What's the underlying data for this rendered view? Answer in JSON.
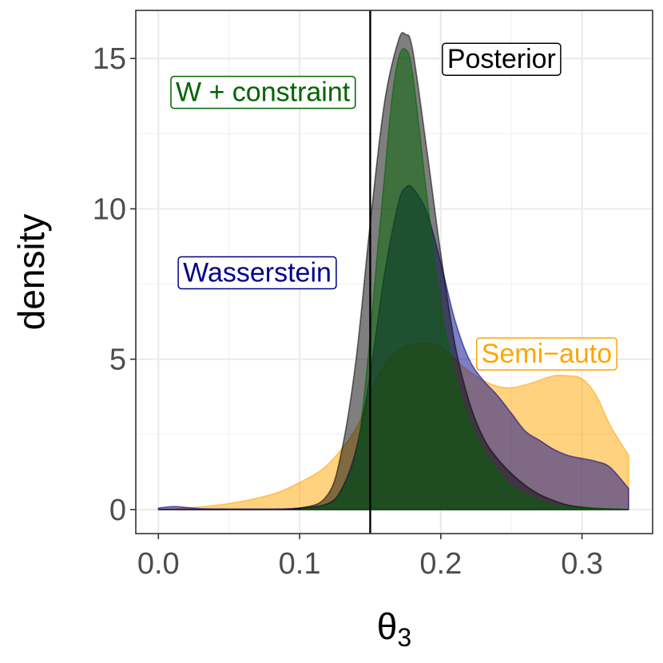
{
  "chart_data": {
    "type": "area",
    "xlabel": "θ",
    "xlabel_subscript": "3",
    "ylabel": "density",
    "xlim": [
      -0.016,
      0.35
    ],
    "ylim": [
      -0.8,
      16.6
    ],
    "x_ticks": [
      0.0,
      0.1,
      0.2,
      0.3
    ],
    "x_tick_labels": [
      "0.0",
      "0.1",
      "0.2",
      "0.3"
    ],
    "y_ticks": [
      0,
      5,
      10,
      15
    ],
    "y_tick_labels": [
      "0",
      "5",
      "10",
      "15"
    ],
    "grid": true,
    "vline": {
      "x": 0.15,
      "color": "#000000"
    },
    "series": [
      {
        "name": "Semi−auto",
        "color": "#ffa500",
        "fill_opacity": 0.5,
        "x": [
          0.0,
          0.02,
          0.05,
          0.08,
          0.1,
          0.12,
          0.14,
          0.15,
          0.16,
          0.17,
          0.18,
          0.19,
          0.2,
          0.21,
          0.22,
          0.23,
          0.24,
          0.25,
          0.26,
          0.27,
          0.28,
          0.29,
          0.3,
          0.31,
          0.32,
          0.333
        ],
        "y": [
          0.0,
          0.05,
          0.2,
          0.5,
          0.9,
          1.5,
          2.7,
          3.9,
          4.8,
          5.3,
          5.5,
          5.55,
          5.4,
          5.0,
          4.6,
          4.3,
          4.1,
          4.05,
          4.15,
          4.3,
          4.45,
          4.45,
          4.35,
          3.8,
          2.8,
          1.8
        ]
      },
      {
        "name": "Wasserstein",
        "color": "#00008b",
        "fill_opacity": 0.5,
        "x": [
          0.0,
          0.01,
          0.02,
          0.03,
          0.05,
          0.08,
          0.1,
          0.12,
          0.13,
          0.14,
          0.15,
          0.16,
          0.17,
          0.175,
          0.18,
          0.19,
          0.2,
          0.21,
          0.22,
          0.23,
          0.24,
          0.25,
          0.26,
          0.27,
          0.28,
          0.29,
          0.3,
          0.31,
          0.32,
          0.333
        ],
        "y": [
          0.05,
          0.1,
          0.07,
          0.03,
          0.02,
          0.02,
          0.05,
          0.2,
          0.7,
          2.0,
          4.5,
          7.8,
          10.2,
          10.7,
          10.7,
          9.9,
          8.2,
          6.3,
          5.0,
          4.3,
          3.8,
          3.2,
          2.6,
          2.3,
          2.0,
          1.8,
          1.7,
          1.6,
          1.4,
          0.7
        ]
      },
      {
        "name": "Posterior",
        "color": "#000000",
        "fill_opacity": 0.5,
        "x": [
          0.0,
          0.05,
          0.1,
          0.12,
          0.13,
          0.14,
          0.15,
          0.16,
          0.17,
          0.175,
          0.18,
          0.19,
          0.2,
          0.21,
          0.22,
          0.23,
          0.24,
          0.25,
          0.26,
          0.27,
          0.28,
          0.29,
          0.3,
          0.31,
          0.32,
          0.333
        ],
        "y": [
          0.0,
          0.0,
          0.05,
          0.5,
          2.0,
          5.0,
          9.5,
          13.5,
          15.6,
          15.8,
          15.3,
          12.0,
          8.5,
          5.5,
          3.6,
          2.4,
          1.7,
          1.2,
          0.8,
          0.5,
          0.3,
          0.15,
          0.08,
          0.04,
          0.02,
          0.0
        ]
      },
      {
        "name": "W + constraint",
        "color": "#006400",
        "fill_opacity": 0.5,
        "x": [
          0.1,
          0.12,
          0.13,
          0.14,
          0.145,
          0.15,
          0.155,
          0.16,
          0.165,
          0.17,
          0.175,
          0.18,
          0.19,
          0.2,
          0.21,
          0.22,
          0.23,
          0.24,
          0.25,
          0.26,
          0.27,
          0.28,
          0.3,
          0.333
        ],
        "y": [
          0.0,
          0.15,
          0.6,
          1.8,
          3.5,
          5.8,
          8.5,
          11.0,
          13.5,
          15.0,
          15.3,
          14.5,
          10.5,
          6.8,
          4.5,
          3.0,
          2.0,
          1.3,
          0.8,
          0.5,
          0.3,
          0.15,
          0.05,
          0.0
        ]
      }
    ],
    "annotations": [
      {
        "text": "Posterior",
        "x": 0.243,
        "y": 15.0,
        "color": "#000000"
      },
      {
        "text": "W + constraint",
        "x": 0.074,
        "y": 13.9,
        "color": "#006400"
      },
      {
        "text": "Wasserstein",
        "x": 0.07,
        "y": 7.9,
        "color": "#00008b"
      },
      {
        "text": "Semi−auto",
        "x": 0.275,
        "y": 5.2,
        "color": "#ffa500"
      }
    ]
  }
}
